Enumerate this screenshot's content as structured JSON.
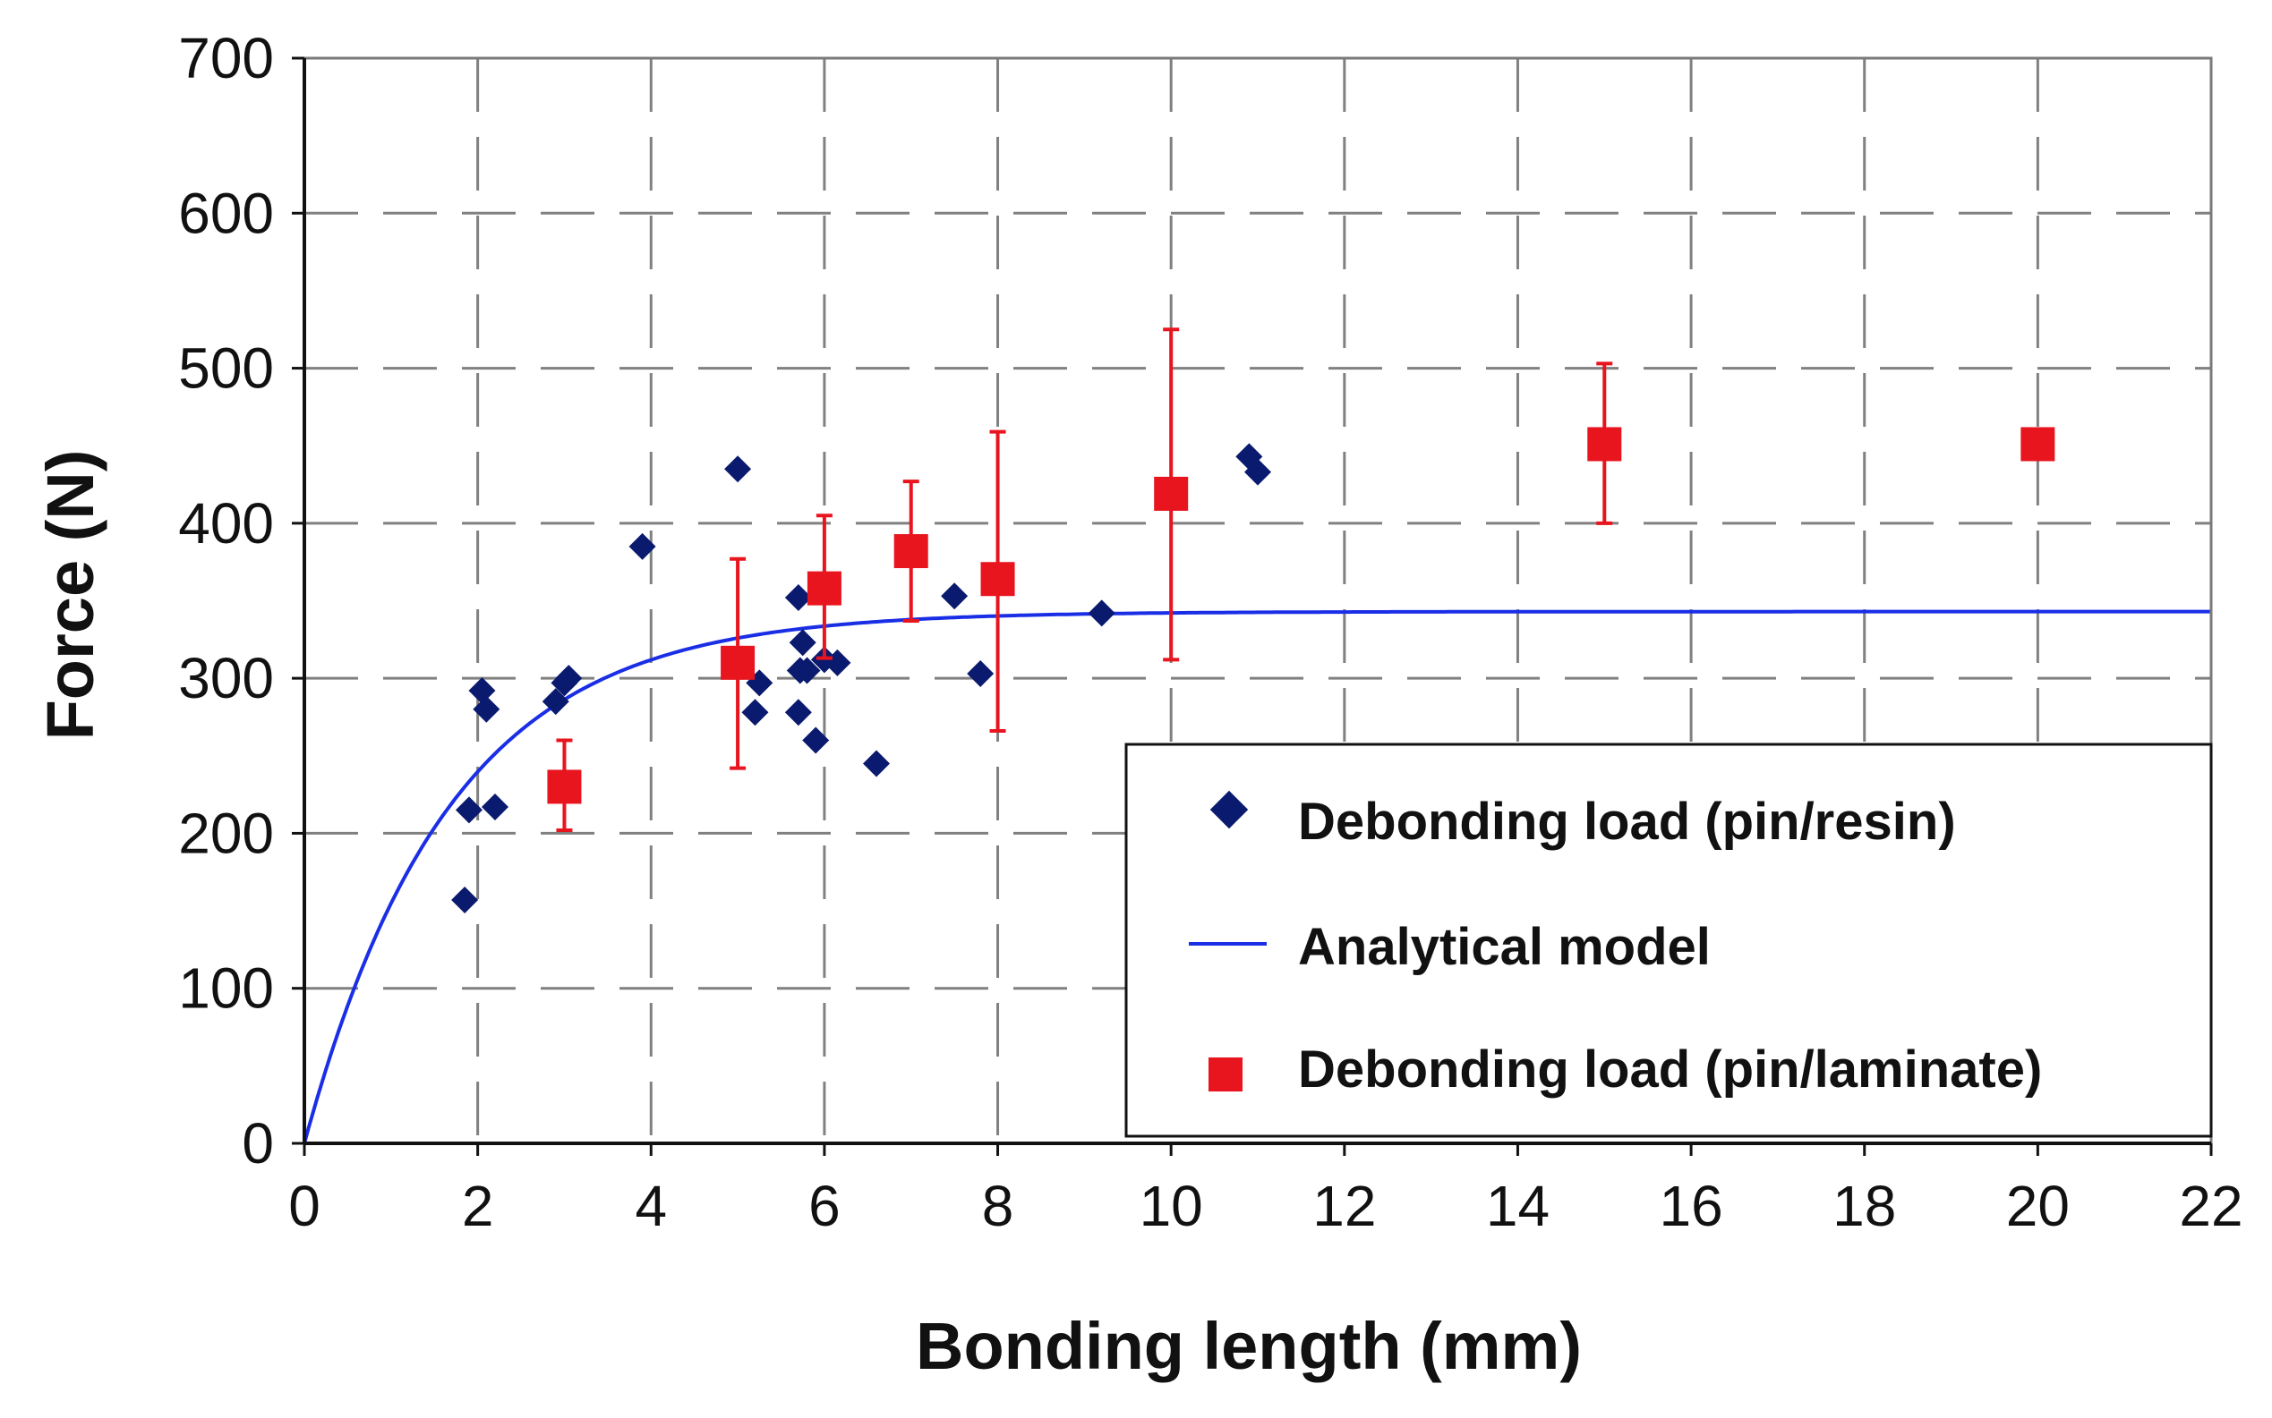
{
  "chart_data": {
    "type": "scatter",
    "title": "",
    "xlabel": "Bonding length (mm)",
    "ylabel": "Force (N)",
    "xlim": [
      0,
      22
    ],
    "ylim": [
      0,
      700
    ],
    "xticks": [
      0,
      2,
      4,
      6,
      8,
      10,
      12,
      14,
      16,
      18,
      20,
      22
    ],
    "yticks": [
      0,
      100,
      200,
      300,
      400,
      500,
      600,
      700
    ],
    "grid": true,
    "legend_position": "bottom-right",
    "series": [
      {
        "name": "Debonding load (pin/resin)",
        "kind": "scatter",
        "marker": "diamond",
        "color": "#0a1a6e",
        "points": [
          [
            1.85,
            157
          ],
          [
            1.9,
            215
          ],
          [
            2.05,
            292
          ],
          [
            2.1,
            280
          ],
          [
            2.2,
            217
          ],
          [
            2.9,
            285
          ],
          [
            3.0,
            297
          ],
          [
            3.05,
            300
          ],
          [
            3.9,
            385
          ],
          [
            5.0,
            435
          ],
          [
            5.2,
            278
          ],
          [
            5.25,
            297
          ],
          [
            5.7,
            278
          ],
          [
            5.7,
            352
          ],
          [
            5.72,
            305
          ],
          [
            5.75,
            323
          ],
          [
            5.8,
            305
          ],
          [
            5.9,
            260
          ],
          [
            6.0,
            312
          ],
          [
            6.15,
            310
          ],
          [
            6.6,
            245
          ],
          [
            7.5,
            353
          ],
          [
            7.8,
            303
          ],
          [
            9.2,
            342
          ],
          [
            10.9,
            443
          ],
          [
            11.0,
            433
          ]
        ]
      },
      {
        "name": "Analytical model",
        "kind": "line",
        "color": "#1a2ee6",
        "plateau": 343,
        "rate": 0.6,
        "x_end": 22
      },
      {
        "name": "Debonding load (pin/laminate)",
        "kind": "scatter",
        "marker": "square",
        "color": "#e8141e",
        "points": [
          {
            "x": 3,
            "y": 230,
            "low": 202,
            "high": 260
          },
          {
            "x": 5,
            "y": 310,
            "low": 242,
            "high": 377
          },
          {
            "x": 6,
            "y": 358,
            "low": 313,
            "high": 405
          },
          {
            "x": 7,
            "y": 382,
            "low": 337,
            "high": 427
          },
          {
            "x": 8,
            "y": 364,
            "low": 266,
            "high": 459
          },
          {
            "x": 10,
            "y": 419,
            "low": 312,
            "high": 525
          },
          {
            "x": 15,
            "y": 451,
            "low": 400,
            "high": 503
          },
          {
            "x": 20,
            "y": 451
          }
        ]
      }
    ]
  }
}
